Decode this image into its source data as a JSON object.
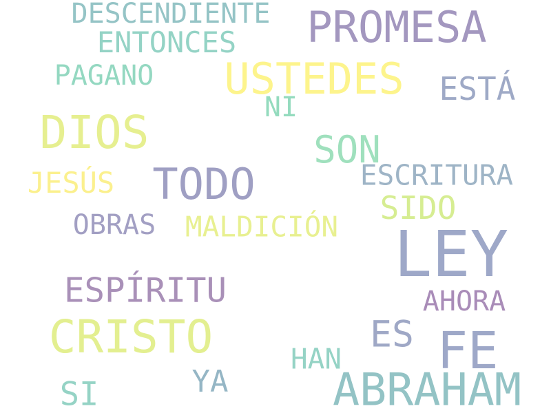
{
  "words": [
    {
      "text": "DESCENDIENTE",
      "color": "#95c4c6"
    },
    {
      "text": "PROMESA",
      "color": "#a397bf"
    },
    {
      "text": "ENTONCES",
      "color": "#94d3c5"
    },
    {
      "text": "USTEDES",
      "color": "#fdf48c"
    },
    {
      "text": "PAGANO",
      "color": "#94d8c1"
    },
    {
      "text": "ESTÁ",
      "color": "#9ea9c6"
    },
    {
      "text": "NI",
      "color": "#94dbbe"
    },
    {
      "text": "DIOS",
      "color": "#e6ef90"
    },
    {
      "text": "SON",
      "color": "#9fe0bd"
    },
    {
      "text": "JESÚS",
      "color": "#fbf08e"
    },
    {
      "text": "TODO",
      "color": "#9f9fc3"
    },
    {
      "text": "ESCRITURA",
      "color": "#9eb4c6"
    },
    {
      "text": "SIDO",
      "color": "#d6ed92"
    },
    {
      "text": "OBRAS",
      "color": "#a29fc3"
    },
    {
      "text": "MALDICIÓN",
      "color": "#e8f091"
    },
    {
      "text": "LEY",
      "color": "#9ea8c8"
    },
    {
      "text": "ESPÍRITU",
      "color": "#a990b8"
    },
    {
      "text": "AHORA",
      "color": "#a98cb8"
    },
    {
      "text": "CRISTO",
      "color": "#e3ef90"
    },
    {
      "text": "ES",
      "color": "#9fa8c6"
    },
    {
      "text": "FE",
      "color": "#9ea8c8"
    },
    {
      "text": "HAN",
      "color": "#95d3c5"
    },
    {
      "text": "YA",
      "color": "#95b6c5"
    },
    {
      "text": "SI",
      "color": "#95d3c5"
    },
    {
      "text": "ABRAHAM",
      "color": "#93c3c5"
    }
  ]
}
